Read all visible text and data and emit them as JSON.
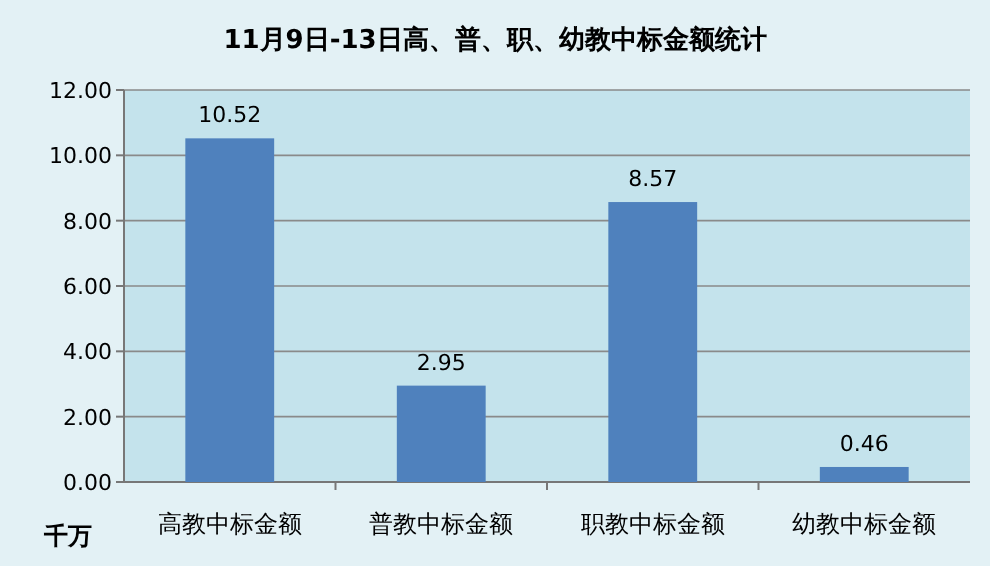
{
  "chart_data": {
    "type": "bar",
    "title": "11月9日-13日高、普、职、幼教中标金额统计",
    "ylabel": "千万",
    "categories": [
      "高教中标金额",
      "普教中标金额",
      "职教中标金额",
      "幼教中标金额"
    ],
    "values": [
      10.52,
      2.95,
      8.57,
      0.46
    ],
    "color": "#4f81bd",
    "ylim": [
      0,
      12
    ],
    "yticks": [
      {
        "value": 0,
        "label": "0.00"
      },
      {
        "value": 2,
        "label": "2.00"
      },
      {
        "value": 4,
        "label": "4.00"
      },
      {
        "value": 6,
        "label": "6.00"
      },
      {
        "value": 8,
        "label": "8.00"
      },
      {
        "value": 10,
        "label": "10.00"
      },
      {
        "value": 12,
        "label": "12.00"
      }
    ],
    "grid": "y",
    "data_labels": true
  }
}
